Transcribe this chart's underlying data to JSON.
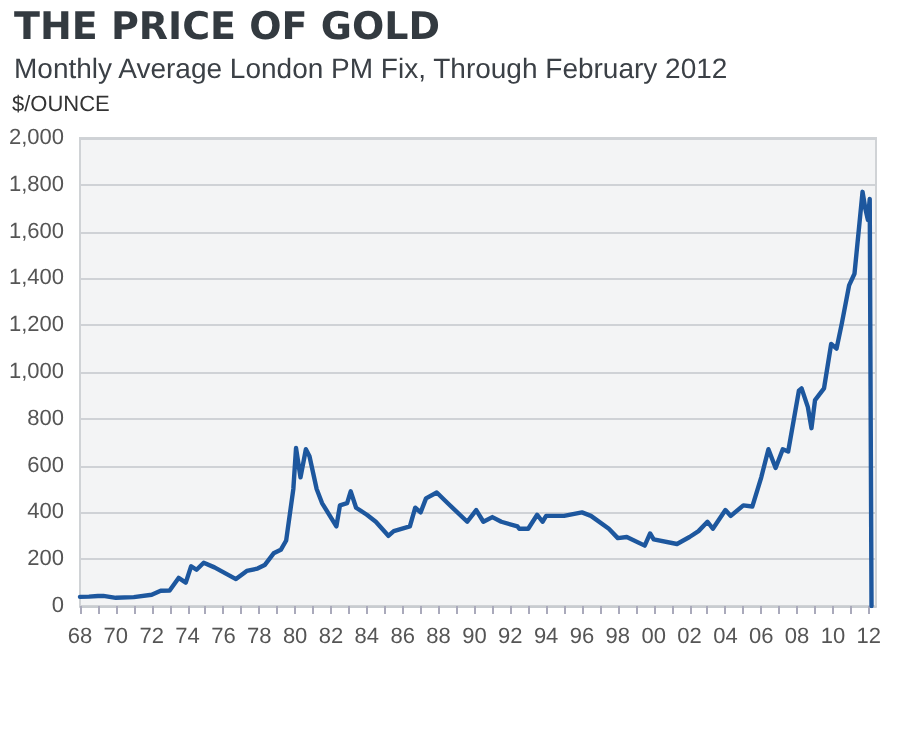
{
  "chart_data": {
    "type": "line",
    "title": "THE PRICE OF GOLD",
    "subtitle": "Monthly Average London PM Fix, Through February 2012",
    "ylabel": "$/OUNCE",
    "x": [
      1968,
      1968.5,
      1969,
      1969.3,
      1970,
      1971,
      1972,
      1972.5,
      1973,
      1973.5,
      1973.9,
      1974.2,
      1974.5,
      1974.9,
      1975.5,
      1976.7,
      1977.3,
      1977.9,
      1978.3,
      1978.8,
      1979.2,
      1979.5,
      1979.9,
      1980.05,
      1980.3,
      1980.6,
      1980.8,
      1981.2,
      1981.5,
      1982.3,
      1982.5,
      1982.9,
      1983.1,
      1983.4,
      1984,
      1984.5,
      1985.2,
      1985.5,
      1986.4,
      1986.7,
      1987,
      1987.3,
      1987.9,
      1988.5,
      1989.6,
      1990.1,
      1990.5,
      1991,
      1991.5,
      1992.4,
      1992.5,
      1993,
      1993.5,
      1993.8,
      1994,
      1995,
      1996,
      1996.5,
      1997.5,
      1998,
      1998.5,
      1999.5,
      1999.8,
      2000,
      2001.3,
      2002,
      2002.5,
      2003,
      2003.3,
      2004,
      2004.3,
      2005,
      2005.5,
      2006,
      2006.4,
      2006.8,
      2007.2,
      2007.5,
      2008.1,
      2008.25,
      2008.6,
      2008.8,
      2009,
      2009.5,
      2009.9,
      2010.2,
      2010.5,
      2010.9,
      2011.2,
      2011.65,
      2011.8,
      2011.95,
      2012.05,
      2012.12,
      2012.15
    ],
    "series": [
      {
        "color": "#1d579e",
        "values": [
          39,
          40,
          43,
          43,
          35,
          38,
          48,
          65,
          66,
          120,
          100,
          170,
          155,
          185,
          165,
          115,
          150,
          160,
          175,
          225,
          240,
          280,
          500,
          675,
          550,
          670,
          640,
          500,
          440,
          340,
          430,
          440,
          490,
          420,
          390,
          360,
          300,
          320,
          340,
          420,
          400,
          460,
          485,
          440,
          360,
          410,
          360,
          380,
          360,
          340,
          330,
          330,
          390,
          360,
          385,
          385,
          400,
          385,
          330,
          290,
          295,
          258,
          310,
          285,
          265,
          295,
          320,
          360,
          330,
          410,
          385,
          430,
          425,
          550,
          670,
          590,
          670,
          660,
          920,
          930,
          850,
          760,
          880,
          930,
          1120,
          1100,
          1210,
          1370,
          1420,
          1770,
          1700,
          1650,
          1740,
          1740,
          0
        ]
      }
    ],
    "xlim": [
      1968,
      2012.4
    ],
    "xticks": [
      {
        "value": 1968,
        "label": "68"
      },
      {
        "value": 1969,
        "label": null
      },
      {
        "value": 1970,
        "label": "70"
      },
      {
        "value": 1971,
        "label": null
      },
      {
        "value": 1972,
        "label": "72"
      },
      {
        "value": 1973,
        "label": null
      },
      {
        "value": 1974,
        "label": "74"
      },
      {
        "value": 1975,
        "label": null
      },
      {
        "value": 1976,
        "label": "76"
      },
      {
        "value": 1977,
        "label": null
      },
      {
        "value": 1978,
        "label": "78"
      },
      {
        "value": 1979,
        "label": null
      },
      {
        "value": 1980,
        "label": "80"
      },
      {
        "value": 1981,
        "label": null
      },
      {
        "value": 1982,
        "label": "82"
      },
      {
        "value": 1983,
        "label": null
      },
      {
        "value": 1984,
        "label": "84"
      },
      {
        "value": 1985,
        "label": null
      },
      {
        "value": 1986,
        "label": "86"
      },
      {
        "value": 1987,
        "label": null
      },
      {
        "value": 1988,
        "label": "88"
      },
      {
        "value": 1989,
        "label": null
      },
      {
        "value": 1990,
        "label": "90"
      },
      {
        "value": 1991,
        "label": null
      },
      {
        "value": 1992,
        "label": "92"
      },
      {
        "value": 1993,
        "label": null
      },
      {
        "value": 1994,
        "label": "94"
      },
      {
        "value": 1995,
        "label": null
      },
      {
        "value": 1996,
        "label": "96"
      },
      {
        "value": 1997,
        "label": null
      },
      {
        "value": 1998,
        "label": "98"
      },
      {
        "value": 1999,
        "label": null
      },
      {
        "value": 2000,
        "label": "00"
      },
      {
        "value": 2001,
        "label": null
      },
      {
        "value": 2002,
        "label": "02"
      },
      {
        "value": 2003,
        "label": null
      },
      {
        "value": 2004,
        "label": "04"
      },
      {
        "value": 2005,
        "label": null
      },
      {
        "value": 2006,
        "label": "06"
      },
      {
        "value": 2007,
        "label": null
      },
      {
        "value": 2008,
        "label": "08"
      },
      {
        "value": 2009,
        "label": null
      },
      {
        "value": 2010,
        "label": "10"
      },
      {
        "value": 2011,
        "label": null
      },
      {
        "value": 2012,
        "label": "12"
      }
    ],
    "ylim": [
      0,
      2000
    ],
    "yticks": [
      0,
      200,
      400,
      600,
      800,
      {
        "value": 1000,
        "label": "1,000"
      },
      {
        "value": 1200,
        "label": "1,200"
      },
      {
        "value": 1400,
        "label": "1,400"
      },
      {
        "value": 1600,
        "label": "1,600"
      },
      {
        "value": 1800,
        "label": "1,800"
      },
      {
        "value": 2000,
        "label": "2,000"
      }
    ],
    "grid": "y",
    "marker": "none",
    "line_style": "solid"
  }
}
